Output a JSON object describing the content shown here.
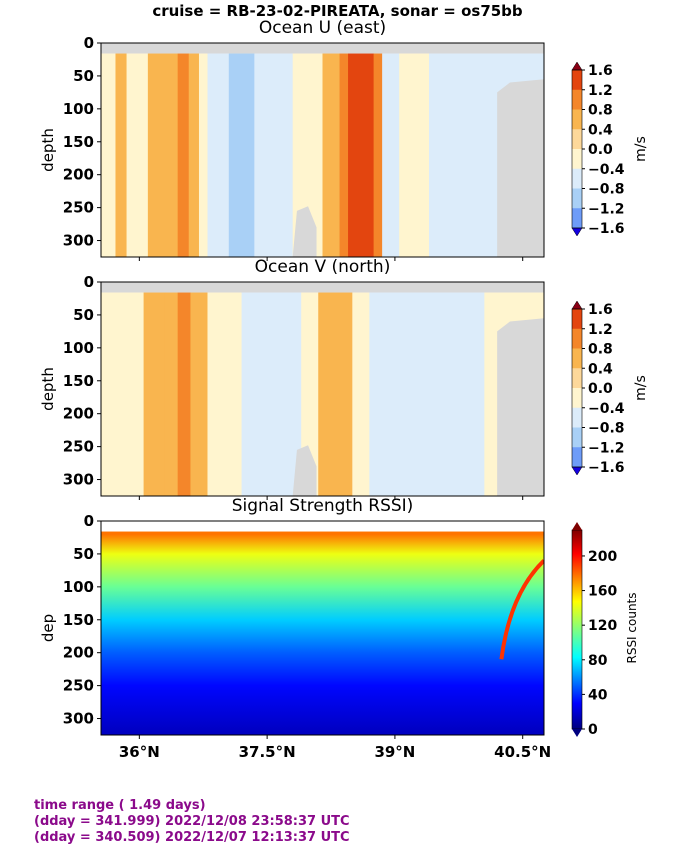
{
  "suptitle": "cruise = RB-23-02-PIREATA,  sonar = os75bb",
  "footer": [
    "time range ( 1.49 days)",
    "(dday = 341.999) 2022/12/08 23:58:37 UTC",
    "(dday = 340.509) 2022/12/07 12:13:37 UTC"
  ],
  "colors": {
    "bad_data_gray": "#d8d8d8",
    "footer_text": "#8b0a8b",
    "velocity_levels": [
      "#1400e0",
      "#2a5cf5",
      "#6e9cf8",
      "#a9d0f6",
      "#dcecfa",
      "#fff5cf",
      "#fdd89a",
      "#f9b54f",
      "#f4862a",
      "#e3450f",
      "#c21b05",
      "#8a0015"
    ]
  },
  "chart_data": [
    {
      "type": "heatmap",
      "title": "Ocean U (east)",
      "ylabel": "depth",
      "xlabel": "",
      "xlim": [
        35.55,
        40.75
      ],
      "ylim": [
        325,
        0
      ],
      "yticks": [
        "0",
        "50",
        "100",
        "150",
        "200",
        "250",
        "300"
      ],
      "xticks": [],
      "colorbar": {
        "label": "m/s",
        "range": [
          -1.6,
          1.6
        ],
        "ticks": [
          "1.6",
          "1.2",
          "0.8",
          "0.4",
          "0.0",
          "−0.4",
          "−0.8",
          "−1.2",
          "−1.6"
        ]
      },
      "bands": [
        {
          "from": 35.55,
          "to": 35.72,
          "value": 0.2
        },
        {
          "from": 35.72,
          "to": 35.85,
          "value": 0.5
        },
        {
          "from": 35.85,
          "to": 36.1,
          "value": 0.2
        },
        {
          "from": 36.1,
          "to": 36.45,
          "value": 0.6
        },
        {
          "from": 36.45,
          "to": 36.58,
          "value": 1.0
        },
        {
          "from": 36.58,
          "to": 36.7,
          "value": 0.6
        },
        {
          "from": 36.7,
          "to": 36.8,
          "value": 0.2
        },
        {
          "from": 36.8,
          "to": 36.9,
          "value": -0.1
        },
        {
          "from": 36.9,
          "to": 37.05,
          "value": -0.7
        },
        {
          "from": 37.05,
          "to": 37.35,
          "value": -1.0
        },
        {
          "from": 37.35,
          "to": 37.5,
          "value": -0.6
        },
        {
          "from": 37.5,
          "to": 37.8,
          "value": -0.2
        },
        {
          "from": 37.8,
          "to": 38.15,
          "value": 0.2
        },
        {
          "from": 38.15,
          "to": 38.35,
          "value": 0.7
        },
        {
          "from": 38.35,
          "to": 38.45,
          "value": 1.1
        },
        {
          "from": 38.45,
          "to": 38.75,
          "value": 1.5
        },
        {
          "from": 38.75,
          "to": 38.85,
          "value": 0.8
        },
        {
          "from": 38.85,
          "to": 39.05,
          "value": -0.1
        },
        {
          "from": 39.05,
          "to": 39.4,
          "value": 0.1
        },
        {
          "from": 39.4,
          "to": 40.75,
          "value": -0.1
        }
      ]
    },
    {
      "type": "heatmap",
      "title": "Ocean V (north)",
      "ylabel": "depth",
      "xlabel": "",
      "xlim": [
        35.55,
        40.75
      ],
      "ylim": [
        325,
        0
      ],
      "yticks": [
        "0",
        "50",
        "100",
        "150",
        "200",
        "250",
        "300"
      ],
      "xticks": [],
      "colorbar": {
        "label": "m/s",
        "range": [
          -1.6,
          1.6
        ],
        "ticks": [
          "1.6",
          "1.2",
          "0.8",
          "0.4",
          "0.0",
          "−0.4",
          "−0.8",
          "−1.2",
          "−1.6"
        ]
      },
      "bands": [
        {
          "from": 35.55,
          "to": 36.05,
          "value": 0.2
        },
        {
          "from": 36.05,
          "to": 36.3,
          "value": 0.5
        },
        {
          "from": 36.3,
          "to": 36.45,
          "value": 0.7
        },
        {
          "from": 36.45,
          "to": 36.6,
          "value": 0.9
        },
        {
          "from": 36.6,
          "to": 36.8,
          "value": 0.5
        },
        {
          "from": 36.8,
          "to": 37.2,
          "value": 0.2
        },
        {
          "from": 37.2,
          "to": 37.9,
          "value": -0.1
        },
        {
          "from": 37.9,
          "to": 38.1,
          "value": 0.2
        },
        {
          "from": 38.1,
          "to": 38.5,
          "value": 0.5
        },
        {
          "from": 38.5,
          "to": 38.7,
          "value": 0.2
        },
        {
          "from": 38.7,
          "to": 39.4,
          "value": -0.1
        },
        {
          "from": 39.4,
          "to": 39.55,
          "value": -0.5
        },
        {
          "from": 39.55,
          "to": 40.05,
          "value": -0.1
        },
        {
          "from": 40.05,
          "to": 40.75,
          "value": 0.1
        }
      ]
    },
    {
      "type": "heatmap",
      "title": "Signal Strength RSSI)",
      "ylabel": "dep",
      "xlabel": "",
      "xlim": [
        35.55,
        40.75
      ],
      "ylim": [
        325,
        0
      ],
      "yticks": [
        "0",
        "50",
        "100",
        "150",
        "200",
        "250",
        "300"
      ],
      "xticks": [
        "36°N",
        "37.5°N",
        "39°N",
        "40.5°N"
      ],
      "xtick_values": [
        36.0,
        37.5,
        39.0,
        40.5
      ],
      "colorbar": {
        "label": "RSSI counts",
        "range": [
          0,
          230
        ],
        "ticks": [
          "200",
          "160",
          "120",
          "80",
          "40",
          "0"
        ]
      },
      "depth_profile": [
        {
          "depth": 20,
          "value": 175
        },
        {
          "depth": 50,
          "value": 140
        },
        {
          "depth": 100,
          "value": 110
        },
        {
          "depth": 150,
          "value": 75
        },
        {
          "depth": 200,
          "value": 50
        },
        {
          "depth": 250,
          "value": 30
        },
        {
          "depth": 320,
          "value": 15
        }
      ]
    }
  ]
}
